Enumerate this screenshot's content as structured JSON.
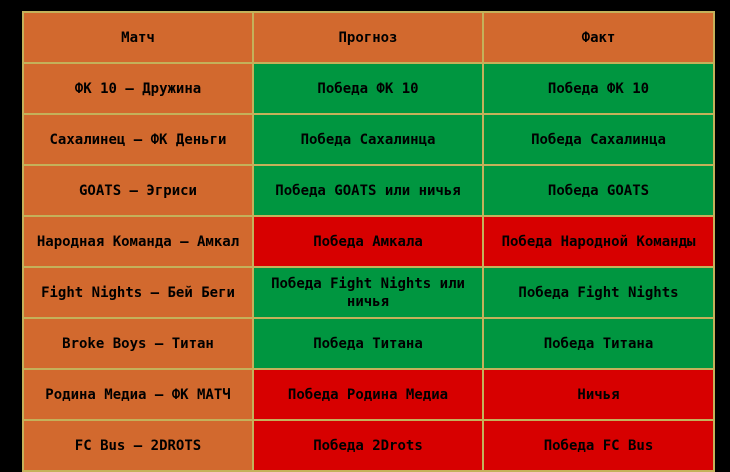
{
  "colors": {
    "page_background": "#000000",
    "header_and_match_cells": "#d2692e",
    "correct_prediction": "#009640",
    "wrong_prediction": "#d70000",
    "cell_border": "#c4b15a"
  },
  "table": {
    "headers": [
      "Матч",
      "Прогноз",
      "Факт"
    ],
    "rows": [
      {
        "match": "ФК 10 – Дружина",
        "prediction": "Победа ФК 10",
        "fact": "Победа ФК 10",
        "status": "correct"
      },
      {
        "match": "Сахалинец – ФК Деньги",
        "prediction": "Победа Сахалинца",
        "fact": "Победа Сахалинца",
        "status": "correct"
      },
      {
        "match": "GOATS – Эгриси",
        "prediction": "Победа GOATS или ничья",
        "fact": "Победа GOATS",
        "status": "correct"
      },
      {
        "match": "Народная Команда – Амкал",
        "prediction": "Победа Амкала",
        "fact": "Победа Народной Команды",
        "status": "wrong"
      },
      {
        "match": "Fight Nights – Бей Беги",
        "prediction": "Победа Fight Nights или ничья",
        "fact": "Победа Fight Nights",
        "status": "correct"
      },
      {
        "match": "Broke Boys – Титан",
        "prediction": "Победа Титана",
        "fact": "Победа Титана",
        "status": "correct"
      },
      {
        "match": "Родина Медиа – ФК МАТЧ",
        "prediction": "Победа Родина Медиа",
        "fact": "Ничья",
        "status": "wrong"
      },
      {
        "match": "FC Bus – 2DROTS",
        "prediction": "Победа 2Drots",
        "fact": "Победа FC Bus",
        "status": "wrong"
      }
    ]
  }
}
